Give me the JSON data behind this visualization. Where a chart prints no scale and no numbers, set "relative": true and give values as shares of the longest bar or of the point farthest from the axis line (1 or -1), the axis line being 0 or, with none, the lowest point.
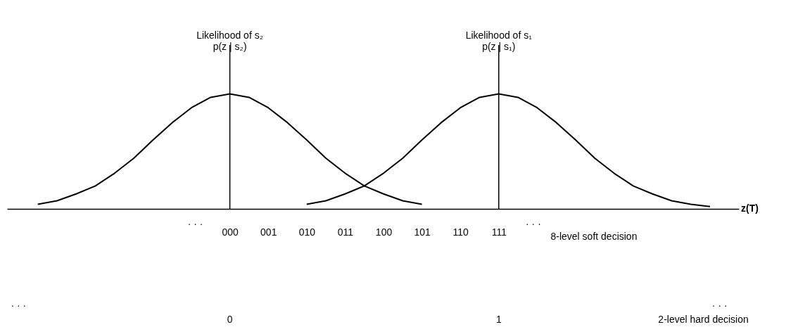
{
  "chart_data": {
    "type": "line",
    "relative": true,
    "xlabel": "z(T)",
    "categories": [
      null,
      null,
      null,
      null,
      null,
      null,
      null,
      null,
      null,
      null,
      "000",
      null,
      "001",
      null,
      "010",
      null,
      "011",
      null,
      "100",
      null,
      "101",
      null,
      "110",
      null,
      "111",
      null,
      null,
      null,
      null,
      null,
      null,
      null,
      null,
      null,
      null,
      null
    ],
    "series": [
      {
        "color": "#000000",
        "values": [
          0.04,
          0.07,
          0.13,
          0.2,
          0.31,
          0.44,
          0.6,
          0.75,
          0.88,
          0.97,
          1,
          0.97,
          0.88,
          0.75,
          0.6,
          0.44,
          0.31,
          0.2,
          0.13,
          0.07,
          0.04,
          null,
          null,
          null,
          null,
          null,
          null,
          null,
          null,
          null,
          null,
          null,
          null,
          null,
          null,
          null
        ]
      },
      {
        "color": "#000000",
        "values": [
          null,
          null,
          null,
          null,
          null,
          null,
          null,
          null,
          null,
          null,
          null,
          null,
          null,
          null,
          0.04,
          0.07,
          0.13,
          0.2,
          0.31,
          0.44,
          0.6,
          0.75,
          0.88,
          0.97,
          1,
          0.97,
          0.88,
          0.75,
          0.6,
          0.44,
          0.31,
          0.2,
          0.13,
          0.07,
          0.04,
          0.02
        ]
      }
    ],
    "ref_lines": [
      {
        "axis": "x",
        "value": "000",
        "label": "Likelihood of s₂\np(z | s₂)",
        "color": "#000000"
      },
      {
        "axis": "x",
        "value": "111",
        "label": "Likelihood of s₁\np(z | s₁)",
        "color": "#000000"
      }
    ],
    "annotations": [
      "· · ·",
      "· · ·",
      "8-level soft decision",
      "· · ·",
      "· · ·",
      "2-level hard decision",
      "0",
      "1"
    ],
    "grid": false,
    "legend": false,
    "marker": "none",
    "line_style": "solid"
  }
}
